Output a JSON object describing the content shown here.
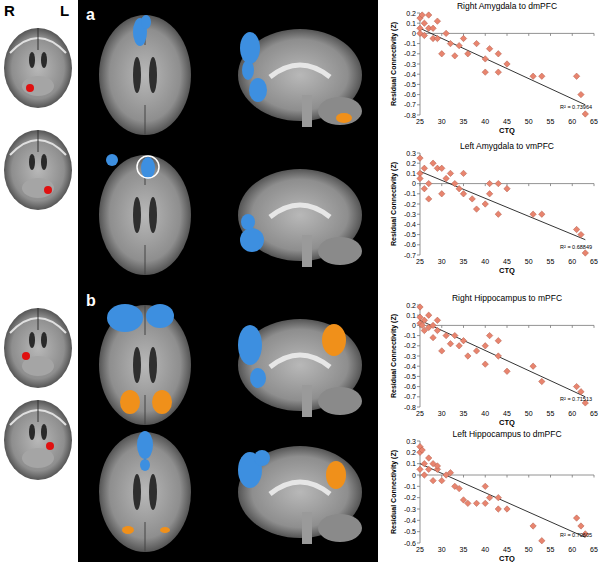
{
  "figure": {
    "left_label": "R",
    "right_label": "L",
    "panels": [
      "a",
      "b"
    ]
  },
  "chart_data": [
    {
      "type": "scatter",
      "title": "Right Amygdala to dmPFC",
      "x_label": "CTQ",
      "y_label": "Residual Connectivity (Z)",
      "color": "#e8846e",
      "marker": "diamond",
      "grid": false,
      "x": [
        25,
        25,
        25,
        25.5,
        26,
        26,
        27,
        27,
        28,
        28,
        29,
        29,
        30,
        31,
        32,
        33,
        34,
        35,
        36,
        38,
        40,
        40,
        41,
        43,
        43,
        45,
        51,
        53,
        61,
        62,
        63
      ],
      "values": [
        0.15,
        0.05,
        0.0,
        0.18,
        0.1,
        -0.02,
        0.05,
        0.18,
        0.05,
        -0.05,
        -0.05,
        0.12,
        -0.2,
        0.0,
        -0.1,
        -0.22,
        -0.12,
        -0.05,
        -0.2,
        -0.1,
        -0.25,
        -0.38,
        -0.15,
        -0.2,
        -0.38,
        -0.3,
        -0.42,
        -0.42,
        -0.42,
        -0.6,
        -0.79
      ],
      "trend_x": [
        25,
        63
      ],
      "trend_y": [
        0.05,
        -0.7
      ],
      "annotations": [
        "R² = 0.73964"
      ],
      "xlim": [
        25,
        65
      ],
      "xticks": [
        25,
        30,
        35,
        40,
        45,
        50,
        55,
        60,
        65
      ],
      "ylim": [
        -0.8,
        0.2
      ],
      "yticks": [
        0.2,
        0.1,
        0,
        -0.1,
        -0.2,
        -0.3,
        -0.4,
        -0.5,
        -0.6,
        -0.7,
        -0.8
      ]
    },
    {
      "type": "scatter",
      "title": "Left Amygdala to vmPFC",
      "x_label": "CTQ",
      "y_label": "Residual Connectivity (Z)",
      "color": "#e8846e",
      "marker": "diamond",
      "grid": false,
      "x": [
        25,
        25,
        25,
        26,
        26,
        27,
        27,
        28,
        29,
        30,
        30,
        31,
        32,
        33,
        34,
        35,
        35,
        37,
        38,
        40,
        41,
        41,
        43,
        43,
        45,
        51,
        53,
        61,
        62,
        63
      ],
      "values": [
        0.25,
        0.1,
        0.05,
        0.15,
        -0.05,
        0.0,
        -0.15,
        0.2,
        0.15,
        0.15,
        -0.1,
        0.05,
        0.1,
        0.0,
        -0.05,
        0.1,
        -0.1,
        -0.15,
        -0.25,
        -0.2,
        0.0,
        -0.1,
        0.0,
        -0.3,
        -0.05,
        -0.3,
        -0.3,
        -0.45,
        -0.5,
        -0.68
      ],
      "trend_x": [
        25,
        63
      ],
      "trend_y": [
        0.12,
        -0.55
      ],
      "annotations": [
        "R² = 0.68849"
      ],
      "xlim": [
        25,
        65
      ],
      "xticks": [
        25,
        30,
        35,
        40,
        45,
        50,
        55,
        60,
        65
      ],
      "ylim": [
        -0.7,
        0.3
      ],
      "yticks": [
        0.3,
        0.2,
        0.1,
        0,
        -0.1,
        -0.2,
        -0.3,
        -0.4,
        -0.5,
        -0.6,
        -0.7
      ]
    },
    {
      "type": "scatter",
      "title": "Right Hippocampus to mPFC",
      "x_label": "CTQ",
      "y_label": "Residual Connectivity (Z)",
      "color": "#e8846e",
      "marker": "diamond",
      "grid": false,
      "x": [
        25,
        25,
        25,
        25.5,
        26,
        26,
        27,
        27,
        28,
        28,
        29,
        29,
        30,
        31,
        32,
        33,
        34,
        35,
        36,
        38,
        40,
        40,
        41,
        43,
        43,
        45,
        51,
        53,
        61,
        62,
        63
      ],
      "values": [
        0.18,
        0.08,
        0.02,
        0.0,
        0.05,
        -0.05,
        0.1,
        -0.02,
        0.0,
        -0.12,
        -0.05,
        0.05,
        -0.25,
        -0.1,
        -0.18,
        -0.1,
        -0.2,
        -0.15,
        -0.3,
        -0.25,
        -0.38,
        -0.2,
        -0.1,
        -0.3,
        -0.15,
        -0.45,
        -0.4,
        -0.55,
        -0.6,
        -0.65,
        -0.76
      ],
      "trend_x": [
        25,
        63
      ],
      "trend_y": [
        0.05,
        -0.7
      ],
      "annotations": [
        "R² = 0.71513"
      ],
      "xlim": [
        25,
        65
      ],
      "xticks": [
        25,
        30,
        35,
        40,
        45,
        50,
        55,
        60,
        65
      ],
      "ylim": [
        -0.8,
        0.2
      ],
      "yticks": [
        0.2,
        0.1,
        0,
        -0.1,
        -0.2,
        -0.3,
        -0.4,
        -0.5,
        -0.6,
        -0.7,
        -0.8
      ]
    },
    {
      "type": "scatter",
      "title": "Left Hippocampus to dmPFC",
      "x_label": "CTQ",
      "y_label": "Residual Connectivity (Z)",
      "color": "#e8846e",
      "marker": "diamond",
      "grid": false,
      "x": [
        25,
        25,
        25,
        25.5,
        26,
        26,
        27,
        27,
        28,
        28,
        29,
        29,
        30,
        31,
        32,
        33,
        34,
        35,
        36,
        38,
        40,
        40,
        41,
        43,
        43,
        45,
        51,
        53,
        61,
        62,
        63
      ],
      "values": [
        0.25,
        0.2,
        0.05,
        0.22,
        0.1,
        0.0,
        0.05,
        0.15,
        0.1,
        -0.05,
        0.05,
        0.08,
        -0.05,
        0.0,
        0.02,
        -0.1,
        -0.12,
        -0.22,
        -0.25,
        -0.25,
        -0.25,
        -0.1,
        -0.2,
        -0.2,
        -0.3,
        -0.3,
        -0.45,
        -0.58,
        -0.38,
        -0.45,
        -0.52
      ],
      "trend_x": [
        25,
        63
      ],
      "trend_y": [
        0.1,
        -0.55
      ],
      "annotations": [
        "R² = 0.70605"
      ],
      "xlim": [
        25,
        65
      ],
      "xticks": [
        25,
        30,
        35,
        40,
        45,
        50,
        55,
        60,
        65
      ],
      "ylim": [
        -0.6,
        0.3
      ],
      "yticks": [
        0.3,
        0.2,
        0.1,
        0,
        -0.1,
        -0.2,
        -0.3,
        -0.4,
        -0.5,
        -0.6
      ]
    }
  ]
}
